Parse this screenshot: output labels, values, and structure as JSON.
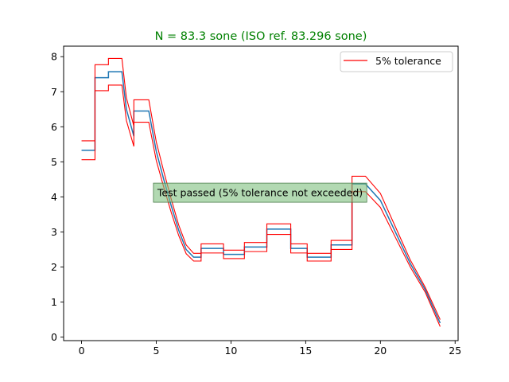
{
  "chart_data": {
    "type": "line",
    "title": "N = 83.3 sone (ISO ref. 83.296 sone)",
    "title_color": "#008000",
    "xlabel": "",
    "ylabel": "",
    "xlim": [
      -1.2,
      25.2
    ],
    "ylim": [
      -0.1,
      8.3
    ],
    "x_ticks": [
      0,
      5,
      10,
      15,
      20,
      25
    ],
    "y_ticks": [
      0,
      1,
      2,
      3,
      4,
      5,
      6,
      7,
      8
    ],
    "grid": false,
    "legend": {
      "placement": "top-right",
      "entries": [
        "5% tolerance"
      ]
    },
    "annotation": {
      "text": "Test passed (5% tolerance not exceeded)",
      "x": 11.95,
      "y": 4.12,
      "box_color": "#7fbf7f"
    },
    "series": [
      {
        "role": "computed",
        "color": "#1f77b4",
        "x": [
          0,
          0.9,
          0.9,
          1.8,
          1.8,
          2.7,
          3.0,
          3.5,
          3.5,
          4.5,
          5.0,
          5.5,
          6.0,
          6.5,
          7.0,
          7.5,
          7.5,
          8.0,
          8.0,
          9.5,
          9.5,
          10.9,
          10.9,
          12.4,
          12.4,
          14.0,
          14.0,
          15.1,
          15.1,
          16.7,
          16.7,
          18.1,
          18.1,
          19.0,
          20.0,
          21.0,
          22.0,
          23.0,
          24.0
        ],
        "values": [
          5.33,
          5.33,
          7.4,
          7.4,
          7.57,
          7.57,
          6.5,
          5.73,
          6.45,
          6.45,
          5.3,
          4.5,
          3.75,
          3.05,
          2.5,
          2.28,
          2.28,
          2.28,
          2.53,
          2.53,
          2.36,
          2.36,
          2.57,
          2.57,
          3.08,
          3.08,
          2.53,
          2.53,
          2.28,
          2.28,
          2.63,
          2.63,
          4.37,
          4.37,
          3.9,
          3.0,
          2.1,
          1.35,
          0.4
        ]
      },
      {
        "name": "5% tolerance",
        "role": "upper",
        "color": "#ff0000",
        "x": [
          0,
          0.9,
          0.9,
          1.8,
          1.8,
          2.7,
          3.0,
          3.5,
          3.5,
          4.5,
          5.0,
          5.5,
          6.0,
          6.5,
          7.0,
          7.5,
          7.5,
          8.0,
          8.0,
          9.5,
          9.5,
          10.9,
          10.9,
          12.4,
          12.4,
          14.0,
          14.0,
          15.1,
          15.1,
          16.7,
          16.7,
          18.1,
          18.1,
          19.0,
          20.0,
          21.0,
          22.0,
          23.0,
          24.0
        ],
        "values": [
          5.6,
          5.6,
          7.77,
          7.77,
          7.95,
          7.95,
          6.83,
          6.02,
          6.77,
          6.77,
          5.57,
          4.73,
          3.94,
          3.2,
          2.63,
          2.39,
          2.39,
          2.39,
          2.66,
          2.66,
          2.48,
          2.48,
          2.7,
          2.7,
          3.23,
          3.23,
          2.66,
          2.66,
          2.39,
          2.39,
          2.76,
          2.76,
          4.59,
          4.59,
          4.1,
          3.15,
          2.2,
          1.42,
          0.5
        ]
      },
      {
        "name": "5% tolerance",
        "role": "lower",
        "color": "#ff0000",
        "x": [
          0,
          0.9,
          0.9,
          1.8,
          1.8,
          2.7,
          3.0,
          3.5,
          3.5,
          4.5,
          5.0,
          5.5,
          6.0,
          6.5,
          7.0,
          7.5,
          7.5,
          8.0,
          8.0,
          9.5,
          9.5,
          10.9,
          10.9,
          12.4,
          12.4,
          14.0,
          14.0,
          15.1,
          15.1,
          16.7,
          16.7,
          18.1,
          18.1,
          19.0,
          20.0,
          21.0,
          22.0,
          23.0,
          24.0
        ],
        "values": [
          5.06,
          5.06,
          7.03,
          7.03,
          7.19,
          7.19,
          6.18,
          5.44,
          6.13,
          6.13,
          5.04,
          4.28,
          3.56,
          2.9,
          2.38,
          2.17,
          2.17,
          2.17,
          2.4,
          2.4,
          2.24,
          2.24,
          2.44,
          2.44,
          2.93,
          2.93,
          2.4,
          2.4,
          2.17,
          2.17,
          2.5,
          2.5,
          4.15,
          4.15,
          3.7,
          2.85,
          2.0,
          1.28,
          0.3
        ]
      }
    ]
  }
}
